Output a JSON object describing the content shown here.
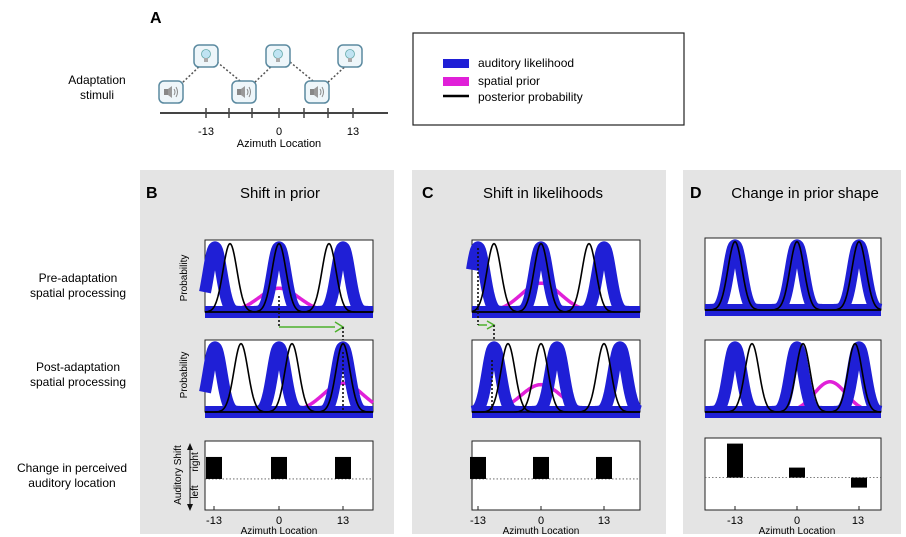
{
  "panel_letters": {
    "a": "A",
    "b": "B",
    "c": "C",
    "d": "D"
  },
  "adaptation": {
    "row_label": [
      "Adaptation",
      "stimuli"
    ],
    "axis_ticks": [
      "-13",
      "0",
      "13"
    ],
    "axis_label": "Azimuth Location"
  },
  "legend": {
    "items": [
      {
        "label": "auditory likelihood",
        "color": "#1f1fd6"
      },
      {
        "label": "spatial prior",
        "color": "#e020d8"
      },
      {
        "label": "posterior probability",
        "color": "#000000"
      }
    ]
  },
  "row_labels": {
    "pre": [
      "Pre-adaptation",
      "spatial processing"
    ],
    "post": [
      "Post-adaptation",
      "spatial processing"
    ],
    "change": [
      "Change in perceived",
      "auditory location"
    ]
  },
  "panels": [
    {
      "letter": "B",
      "title": "Shift in prior"
    },
    {
      "letter": "C",
      "title": "Shift in likelihoods"
    },
    {
      "letter": "D",
      "title": "Change in prior shape"
    }
  ],
  "plot_labels": {
    "probability": "Probability",
    "auditory_shift": "Auditory Shift",
    "right": "right",
    "left": "left",
    "bar_ticks": [
      "-13",
      "0",
      "13"
    ],
    "bar_xlabel": "Azimuth Location"
  },
  "colors": {
    "likelihood": "#1f1fd6",
    "prior": "#e020d8",
    "posterior": "#000000",
    "arrow": "#4cb02c",
    "panel_bg": "#e4e4e4"
  }
}
